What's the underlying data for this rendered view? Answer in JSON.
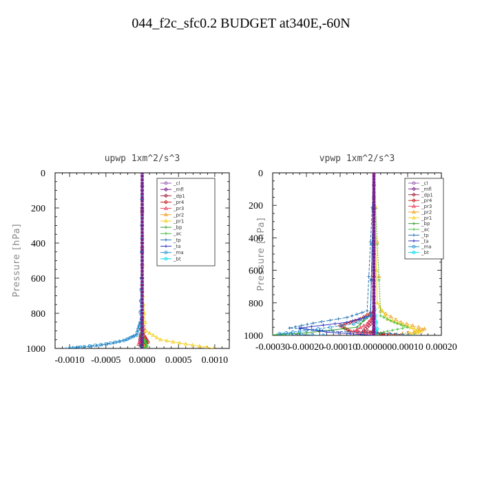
{
  "figure": {
    "title": "044_f2c_sfc0.2  BUDGET at340E,-60N"
  },
  "chart_data": [
    {
      "type": "line",
      "title": "upwp   1xm^2/s^3",
      "xlabel": "",
      "ylabel": "Pressure [hPa]",
      "xlim": [
        -0.0012,
        0.0012
      ],
      "ylim": [
        1000,
        0
      ],
      "x_ticks": [
        -0.001,
        -0.0005,
        0.0,
        0.0005,
        0.001
      ],
      "x_tick_labels": [
        "-0.0010",
        "-0.0005",
        "0.0000",
        "0.0005",
        "0.0010"
      ],
      "y_ticks": [
        0,
        200,
        400,
        600,
        800,
        1000
      ],
      "y_tick_labels": [
        "0",
        "200",
        "400",
        "600",
        "800",
        "1000"
      ],
      "grid": false,
      "legend": "top-right",
      "series": [
        {
          "name": "_cl",
          "color": "#9a5fb0",
          "x": [
            0,
            0,
            0,
            0,
            0
          ],
          "y": [
            0,
            400,
            800,
            950,
            1000
          ]
        },
        {
          "name": "_mfl",
          "color": "#7b1c8c",
          "x": [
            0,
            0,
            0,
            0,
            0,
            0
          ],
          "y": [
            0,
            300,
            600,
            900,
            980,
            1000
          ]
        },
        {
          "name": "_dp1",
          "color": "#a0203c",
          "x": [
            0,
            0,
            -2e-05,
            -3e-05,
            5e-05,
            3e-05
          ],
          "y": [
            0,
            800,
            920,
            960,
            990,
            1000
          ]
        },
        {
          "name": "_pr4",
          "color": "#c81e1e",
          "x": [
            0,
            0,
            3e-05,
            8e-05,
            -2e-05,
            4e-05
          ],
          "y": [
            0,
            850,
            930,
            965,
            985,
            1000
          ]
        },
        {
          "name": "_pr3",
          "color": "#e84060",
          "x": [
            0,
            0,
            2e-05,
            -5e-05,
            4e-05,
            1e-05
          ],
          "y": [
            0,
            850,
            940,
            975,
            990,
            1000
          ]
        },
        {
          "name": "_pr2",
          "color": "#f0a020",
          "x": [
            0,
            0,
            2e-05,
            4e-05
          ],
          "y": [
            0,
            900,
            980,
            1000
          ]
        },
        {
          "name": "_pr1",
          "color": "#f2d020",
          "x": [
            0,
            1e-05,
            5e-05,
            0.00025,
            0.0006,
            0.00098
          ],
          "y": [
            0,
            700,
            900,
            950,
            975,
            1000
          ]
        },
        {
          "name": "_bp",
          "color": "#2a9a2a",
          "x": [
            0,
            0,
            -2e-05,
            6e-05,
            -3e-05,
            2e-05
          ],
          "y": [
            0,
            850,
            930,
            960,
            985,
            1000
          ]
        },
        {
          "name": "_ac",
          "color": "#40c040",
          "x": [
            0,
            0,
            2e-05,
            7e-05,
            2e-05
          ],
          "y": [
            0,
            880,
            945,
            985,
            1000
          ]
        },
        {
          "name": "_tp",
          "color": "#2070b0",
          "x": [
            0,
            -1e-05,
            -3e-05,
            -8e-05,
            -0.00022,
            -0.0004,
            -0.0007,
            -0.00105
          ],
          "y": [
            0,
            600,
            850,
            920,
            950,
            970,
            988,
            1000
          ]
        },
        {
          "name": "_ta",
          "color": "#3030c0",
          "x": [
            0,
            0,
            0,
            -2e-05
          ],
          "y": [
            0,
            800,
            950,
            1000
          ]
        },
        {
          "name": "_ma",
          "color": "#2090d0",
          "x": [
            0,
            -1e-05,
            -3e-05,
            -8e-05,
            -0.00025,
            -0.0005,
            -0.0008,
            -0.001
          ],
          "y": [
            0,
            600,
            860,
            925,
            955,
            975,
            990,
            1000
          ]
        },
        {
          "name": "_bt",
          "color": "#00d8e8",
          "x": [
            0,
            0,
            0
          ],
          "y": [
            0,
            500,
            1000
          ]
        }
      ]
    },
    {
      "type": "line",
      "title": "vpwp   1xm^2/s^3",
      "xlabel": "",
      "ylabel": "Pressure [hPa]",
      "xlim": [
        -0.0003,
        0.0002
      ],
      "ylim": [
        1000,
        0
      ],
      "x_ticks": [
        -0.0003,
        -0.0002,
        -0.0001,
        0.0,
        0.0001,
        0.0002
      ],
      "x_tick_labels": [
        "-0.00030",
        "-0.00020",
        "-0.00010",
        "0.000000",
        "0.00010",
        "0.00020"
      ],
      "y_ticks": [
        0,
        200,
        400,
        600,
        800,
        1000
      ],
      "y_tick_labels": [
        "0",
        "200",
        "400",
        "600",
        "800",
        "1000"
      ],
      "grid": false,
      "legend": "top-right",
      "series": [
        {
          "name": "_cl",
          "color": "#9a5fb0",
          "x": [
            0,
            0,
            0,
            0
          ],
          "y": [
            0,
            500,
            900,
            1000
          ]
        },
        {
          "name": "_mfl",
          "color": "#7b1c8c",
          "x": [
            0,
            0,
            0,
            0,
            0
          ],
          "y": [
            0,
            300,
            700,
            950,
            1000
          ]
        },
        {
          "name": "_dp1",
          "color": "#a0203c",
          "x": [
            0,
            0,
            -1e-05,
            -3e-05,
            2e-05,
            3e-05
          ],
          "y": [
            0,
            850,
            930,
            970,
            990,
            1000
          ]
        },
        {
          "name": "_pr4",
          "color": "#c81e1e",
          "x": [
            0,
            0,
            -4e-05,
            -0.0001,
            -7e-05,
            1e-05,
            8e-05
          ],
          "y": [
            0,
            850,
            900,
            940,
            975,
            985,
            1000
          ]
        },
        {
          "name": "_pr3",
          "color": "#e84060",
          "x": [
            0,
            0,
            -2e-05,
            -6e-05,
            1e-05
          ],
          "y": [
            0,
            880,
            930,
            975,
            1000
          ]
        },
        {
          "name": "_pr2",
          "color": "#f0a020",
          "x": [
            0,
            2e-05,
            8e-05,
            0.00015,
            0.00012,
            5e-05
          ],
          "y": [
            0,
            850,
            920,
            960,
            980,
            1000
          ]
        },
        {
          "name": "_pr1",
          "color": "#f2d020",
          "x": [
            0,
            1e-05,
            4e-05,
            0.0001,
            0.00014,
            0.0001
          ],
          "y": [
            0,
            800,
            900,
            945,
            975,
            1000
          ]
        },
        {
          "name": "_bp",
          "color": "#2a9a2a",
          "x": [
            0,
            -1e-05,
            -5e-05,
            -0.0002,
            -0.0003,
            -0.00025
          ],
          "y": [
            0,
            870,
            950,
            985,
            997,
            1000
          ]
        },
        {
          "name": "_ac",
          "color": "#40c040",
          "x": [
            0,
            2e-05,
            6e-05,
            0.0001,
            4e-05,
            0
          ],
          "y": [
            0,
            880,
            920,
            950,
            975,
            1000
          ]
        },
        {
          "name": "_tp",
          "color": "#2070b0",
          "x": [
            0,
            -2e-05,
            -8e-05,
            -0.00018,
            -0.00025,
            -0.00012,
            5e-05,
            0.00012
          ],
          "y": [
            0,
            850,
            890,
            925,
            955,
            975,
            990,
            1000
          ]
        },
        {
          "name": "_ta",
          "color": "#3030c0",
          "x": [
            0,
            -1e-05,
            -8e-05,
            -0.00022,
            -0.00014,
            0
          ],
          "y": [
            0,
            880,
            920,
            955,
            980,
            1000
          ]
        },
        {
          "name": "_ma",
          "color": "#2090d0",
          "x": [
            0,
            -1e-05,
            -6e-05,
            -0.0002,
            -0.00028,
            -0.00015
          ],
          "y": [
            0,
            880,
            930,
            970,
            990,
            1000
          ]
        },
        {
          "name": "_bt",
          "color": "#00d8e8",
          "x": [
            0,
            0,
            1e-05,
            0
          ],
          "y": [
            0,
            800,
            960,
            1000
          ]
        }
      ]
    }
  ]
}
